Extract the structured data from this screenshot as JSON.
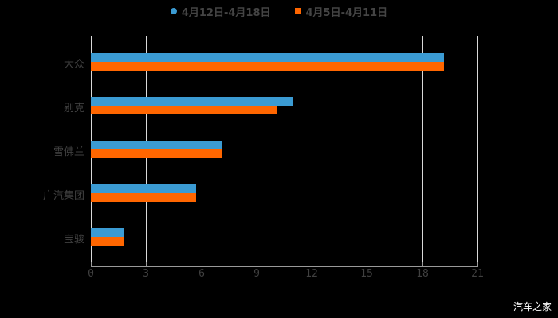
{
  "chart_data": {
    "type": "bar",
    "orientation": "horizontal",
    "title": "",
    "xlabel": "",
    "ylabel": "",
    "categories": [
      "大众",
      "别克",
      "雪佛兰",
      "广汽集团",
      "宝骏"
    ],
    "series": [
      {
        "name": "4月12日-4月18日",
        "color": "#3b9bd3",
        "marker": "circle",
        "values": [
          19.2,
          11.0,
          7.1,
          5.7,
          1.8
        ]
      },
      {
        "name": "4月5日-4月11日",
        "color": "#ff6600",
        "marker": "square",
        "values": [
          19.2,
          10.1,
          7.1,
          5.7,
          1.8
        ]
      }
    ],
    "xlim": [
      0,
      21
    ],
    "xticks": [
      "0",
      "3",
      "6",
      "9",
      "12",
      "15",
      "18",
      "21"
    ],
    "grid": true,
    "legend_position": "top"
  },
  "legend": {
    "items": [
      {
        "label": "4月12日-4月18日"
      },
      {
        "label": "4月5日-4月11日"
      }
    ]
  },
  "watermark": "汽车之家"
}
